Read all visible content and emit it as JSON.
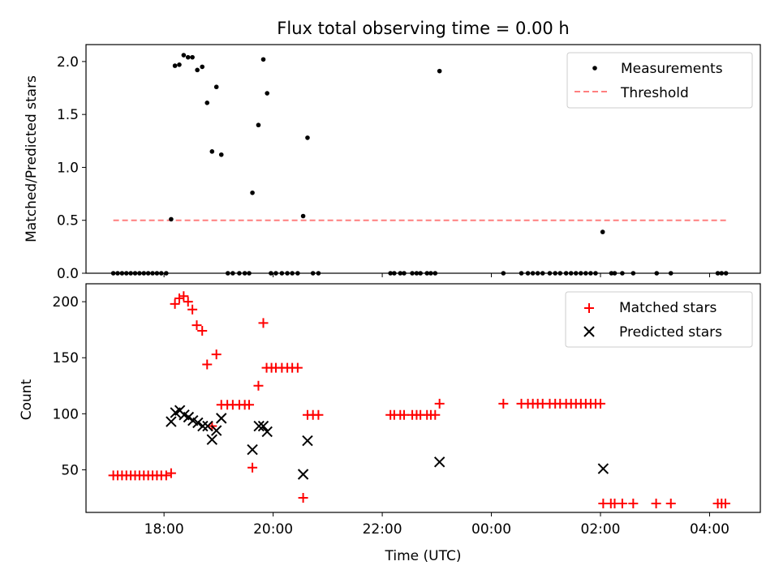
{
  "title": "Flux total observing time = 0.00 h",
  "colors": {
    "measurement": "#000000",
    "threshold": "#ff7f7f",
    "matched": "#ff0000",
    "predicted": "#000000",
    "axis": "#000000"
  },
  "chart_data": [
    {
      "type": "scatter",
      "panel": "top",
      "ylabel": "Matched/Predicted stars",
      "ylim": [
        0,
        2.16
      ],
      "xlim": [
        16.57,
        28.93
      ],
      "yticks": [
        0.0,
        0.5,
        1.0,
        1.5,
        2.0
      ],
      "ytick_labels": [
        "0.0",
        "0.5",
        "1.0",
        "1.5",
        "2.0"
      ],
      "legend": [
        "Measurements",
        "Threshold"
      ],
      "legend_position": "upper right",
      "threshold": {
        "value": 0.5,
        "x_start": 17.07,
        "x_end": 28.31
      },
      "series": [
        {
          "name": "Measurements",
          "points": [
            [
              17.07,
              0
            ],
            [
              17.15,
              0
            ],
            [
              17.23,
              0
            ],
            [
              17.31,
              0
            ],
            [
              17.39,
              0
            ],
            [
              17.47,
              0
            ],
            [
              17.55,
              0
            ],
            [
              17.63,
              0
            ],
            [
              17.71,
              0
            ],
            [
              17.79,
              0
            ],
            [
              17.87,
              0
            ],
            [
              17.95,
              0
            ],
            [
              18.04,
              0
            ],
            [
              18.13,
              0.51
            ],
            [
              18.2,
              1.96
            ],
            [
              18.28,
              1.97
            ],
            [
              18.36,
              2.06
            ],
            [
              18.44,
              2.04
            ],
            [
              18.52,
              2.04
            ],
            [
              18.61,
              1.92
            ],
            [
              18.7,
              1.95
            ],
            [
              18.79,
              1.61
            ],
            [
              18.88,
              1.15
            ],
            [
              18.96,
              1.76
            ],
            [
              19.05,
              1.12
            ],
            [
              19.17,
              0
            ],
            [
              19.26,
              0
            ],
            [
              19.38,
              0
            ],
            [
              19.48,
              0
            ],
            [
              19.56,
              0
            ],
            [
              19.62,
              0.76
            ],
            [
              19.73,
              1.4
            ],
            [
              19.82,
              2.02
            ],
            [
              19.89,
              1.7
            ],
            [
              19.96,
              0
            ],
            [
              20.05,
              0
            ],
            [
              20.16,
              0
            ],
            [
              20.26,
              0
            ],
            [
              20.35,
              0
            ],
            [
              20.45,
              0
            ],
            [
              20.55,
              0.54
            ],
            [
              20.63,
              1.28
            ],
            [
              20.73,
              0
            ],
            [
              20.83,
              0
            ],
            [
              22.15,
              0
            ],
            [
              22.22,
              0
            ],
            [
              22.33,
              0
            ],
            [
              22.4,
              0
            ],
            [
              22.55,
              0
            ],
            [
              22.63,
              0
            ],
            [
              22.7,
              0
            ],
            [
              22.82,
              0
            ],
            [
              22.89,
              0
            ],
            [
              22.97,
              0
            ],
            [
              23.05,
              1.91
            ],
            [
              24.22,
              0
            ],
            [
              24.55,
              0
            ],
            [
              24.67,
              0
            ],
            [
              24.76,
              0
            ],
            [
              24.85,
              0
            ],
            [
              24.94,
              0
            ],
            [
              25.07,
              0
            ],
            [
              25.17,
              0
            ],
            [
              25.26,
              0
            ],
            [
              25.37,
              0
            ],
            [
              25.46,
              0
            ],
            [
              25.55,
              0
            ],
            [
              25.64,
              0
            ],
            [
              25.73,
              0
            ],
            [
              25.82,
              0
            ],
            [
              25.91,
              0
            ],
            [
              26.04,
              0.39
            ],
            [
              26.2,
              0
            ],
            [
              26.26,
              0
            ],
            [
              26.4,
              0
            ],
            [
              26.6,
              0
            ],
            [
              27.03,
              0
            ],
            [
              27.29,
              0
            ],
            [
              28.15,
              0
            ],
            [
              28.22,
              0
            ],
            [
              28.3,
              0
            ]
          ]
        }
      ]
    },
    {
      "type": "scatter",
      "panel": "bottom",
      "xlabel": "Time (UTC)",
      "ylabel": "Count",
      "ylim": [
        12,
        216
      ],
      "xlim": [
        16.57,
        28.93
      ],
      "xticks": [
        18,
        20,
        22,
        24,
        26,
        28
      ],
      "xtick_labels": [
        "18:00",
        "20:00",
        "22:00",
        "00:00",
        "02:00",
        "04:00"
      ],
      "yticks": [
        50,
        100,
        150,
        200
      ],
      "ytick_labels": [
        "50",
        "100",
        "150",
        "200"
      ],
      "legend": [
        "Matched stars",
        "Predicted stars"
      ],
      "legend_position": "upper right",
      "series": [
        {
          "name": "Matched stars",
          "marker": "+",
          "points": [
            [
              17.07,
              45
            ],
            [
              17.15,
              45
            ],
            [
              17.23,
              45
            ],
            [
              17.31,
              45
            ],
            [
              17.39,
              45
            ],
            [
              17.47,
              45
            ],
            [
              17.55,
              45
            ],
            [
              17.63,
              45
            ],
            [
              17.71,
              45
            ],
            [
              17.79,
              45
            ],
            [
              17.87,
              45
            ],
            [
              17.95,
              45
            ],
            [
              18.04,
              45
            ],
            [
              18.13,
              47
            ],
            [
              18.2,
              198
            ],
            [
              18.28,
              203
            ],
            [
              18.36,
              205
            ],
            [
              18.44,
              200
            ],
            [
              18.52,
              193
            ],
            [
              18.6,
              179
            ],
            [
              18.7,
              174
            ],
            [
              18.79,
              144
            ],
            [
              18.88,
              89
            ],
            [
              18.96,
              153
            ],
            [
              19.05,
              108
            ],
            [
              19.16,
              108
            ],
            [
              19.26,
              108
            ],
            [
              19.38,
              108
            ],
            [
              19.48,
              108
            ],
            [
              19.56,
              108
            ],
            [
              19.62,
              52
            ],
            [
              19.73,
              125
            ],
            [
              19.82,
              181
            ],
            [
              19.88,
              141
            ],
            [
              19.97,
              141
            ],
            [
              20.05,
              141
            ],
            [
              20.16,
              141
            ],
            [
              20.26,
              141
            ],
            [
              20.35,
              141
            ],
            [
              20.45,
              141
            ],
            [
              20.55,
              25
            ],
            [
              20.63,
              99
            ],
            [
              20.73,
              99
            ],
            [
              20.83,
              99
            ],
            [
              22.15,
              99
            ],
            [
              22.22,
              99
            ],
            [
              22.33,
              99
            ],
            [
              22.4,
              99
            ],
            [
              22.55,
              99
            ],
            [
              22.63,
              99
            ],
            [
              22.7,
              99
            ],
            [
              22.82,
              99
            ],
            [
              22.89,
              99
            ],
            [
              22.97,
              99
            ],
            [
              23.05,
              109
            ],
            [
              24.22,
              109
            ],
            [
              24.55,
              109
            ],
            [
              24.67,
              109
            ],
            [
              24.76,
              109
            ],
            [
              24.85,
              109
            ],
            [
              24.94,
              109
            ],
            [
              25.07,
              109
            ],
            [
              25.17,
              109
            ],
            [
              25.26,
              109
            ],
            [
              25.37,
              109
            ],
            [
              25.46,
              109
            ],
            [
              25.55,
              109
            ],
            [
              25.64,
              109
            ],
            [
              25.73,
              109
            ],
            [
              25.82,
              109
            ],
            [
              25.91,
              109
            ],
            [
              26.0,
              109
            ],
            [
              26.05,
              20
            ],
            [
              26.19,
              20
            ],
            [
              26.26,
              20
            ],
            [
              26.4,
              20
            ],
            [
              26.6,
              20
            ],
            [
              27.02,
              20
            ],
            [
              27.29,
              20
            ],
            [
              28.15,
              20
            ],
            [
              28.22,
              20
            ],
            [
              28.29,
              20
            ]
          ]
        },
        {
          "name": "Predicted stars",
          "marker": "x",
          "points": [
            [
              18.13,
              93
            ],
            [
              18.21,
              101
            ],
            [
              18.29,
              103
            ],
            [
              18.37,
              99
            ],
            [
              18.45,
              97
            ],
            [
              18.53,
              94
            ],
            [
              18.62,
              92
            ],
            [
              18.71,
              89
            ],
            [
              18.8,
              89
            ],
            [
              18.88,
              77
            ],
            [
              18.96,
              85
            ],
            [
              19.05,
              96
            ],
            [
              19.62,
              68
            ],
            [
              19.74,
              89
            ],
            [
              19.82,
              89
            ],
            [
              19.89,
              84
            ],
            [
              20.55,
              46
            ],
            [
              20.63,
              76
            ],
            [
              23.05,
              57
            ],
            [
              26.05,
              51
            ]
          ]
        }
      ]
    }
  ]
}
